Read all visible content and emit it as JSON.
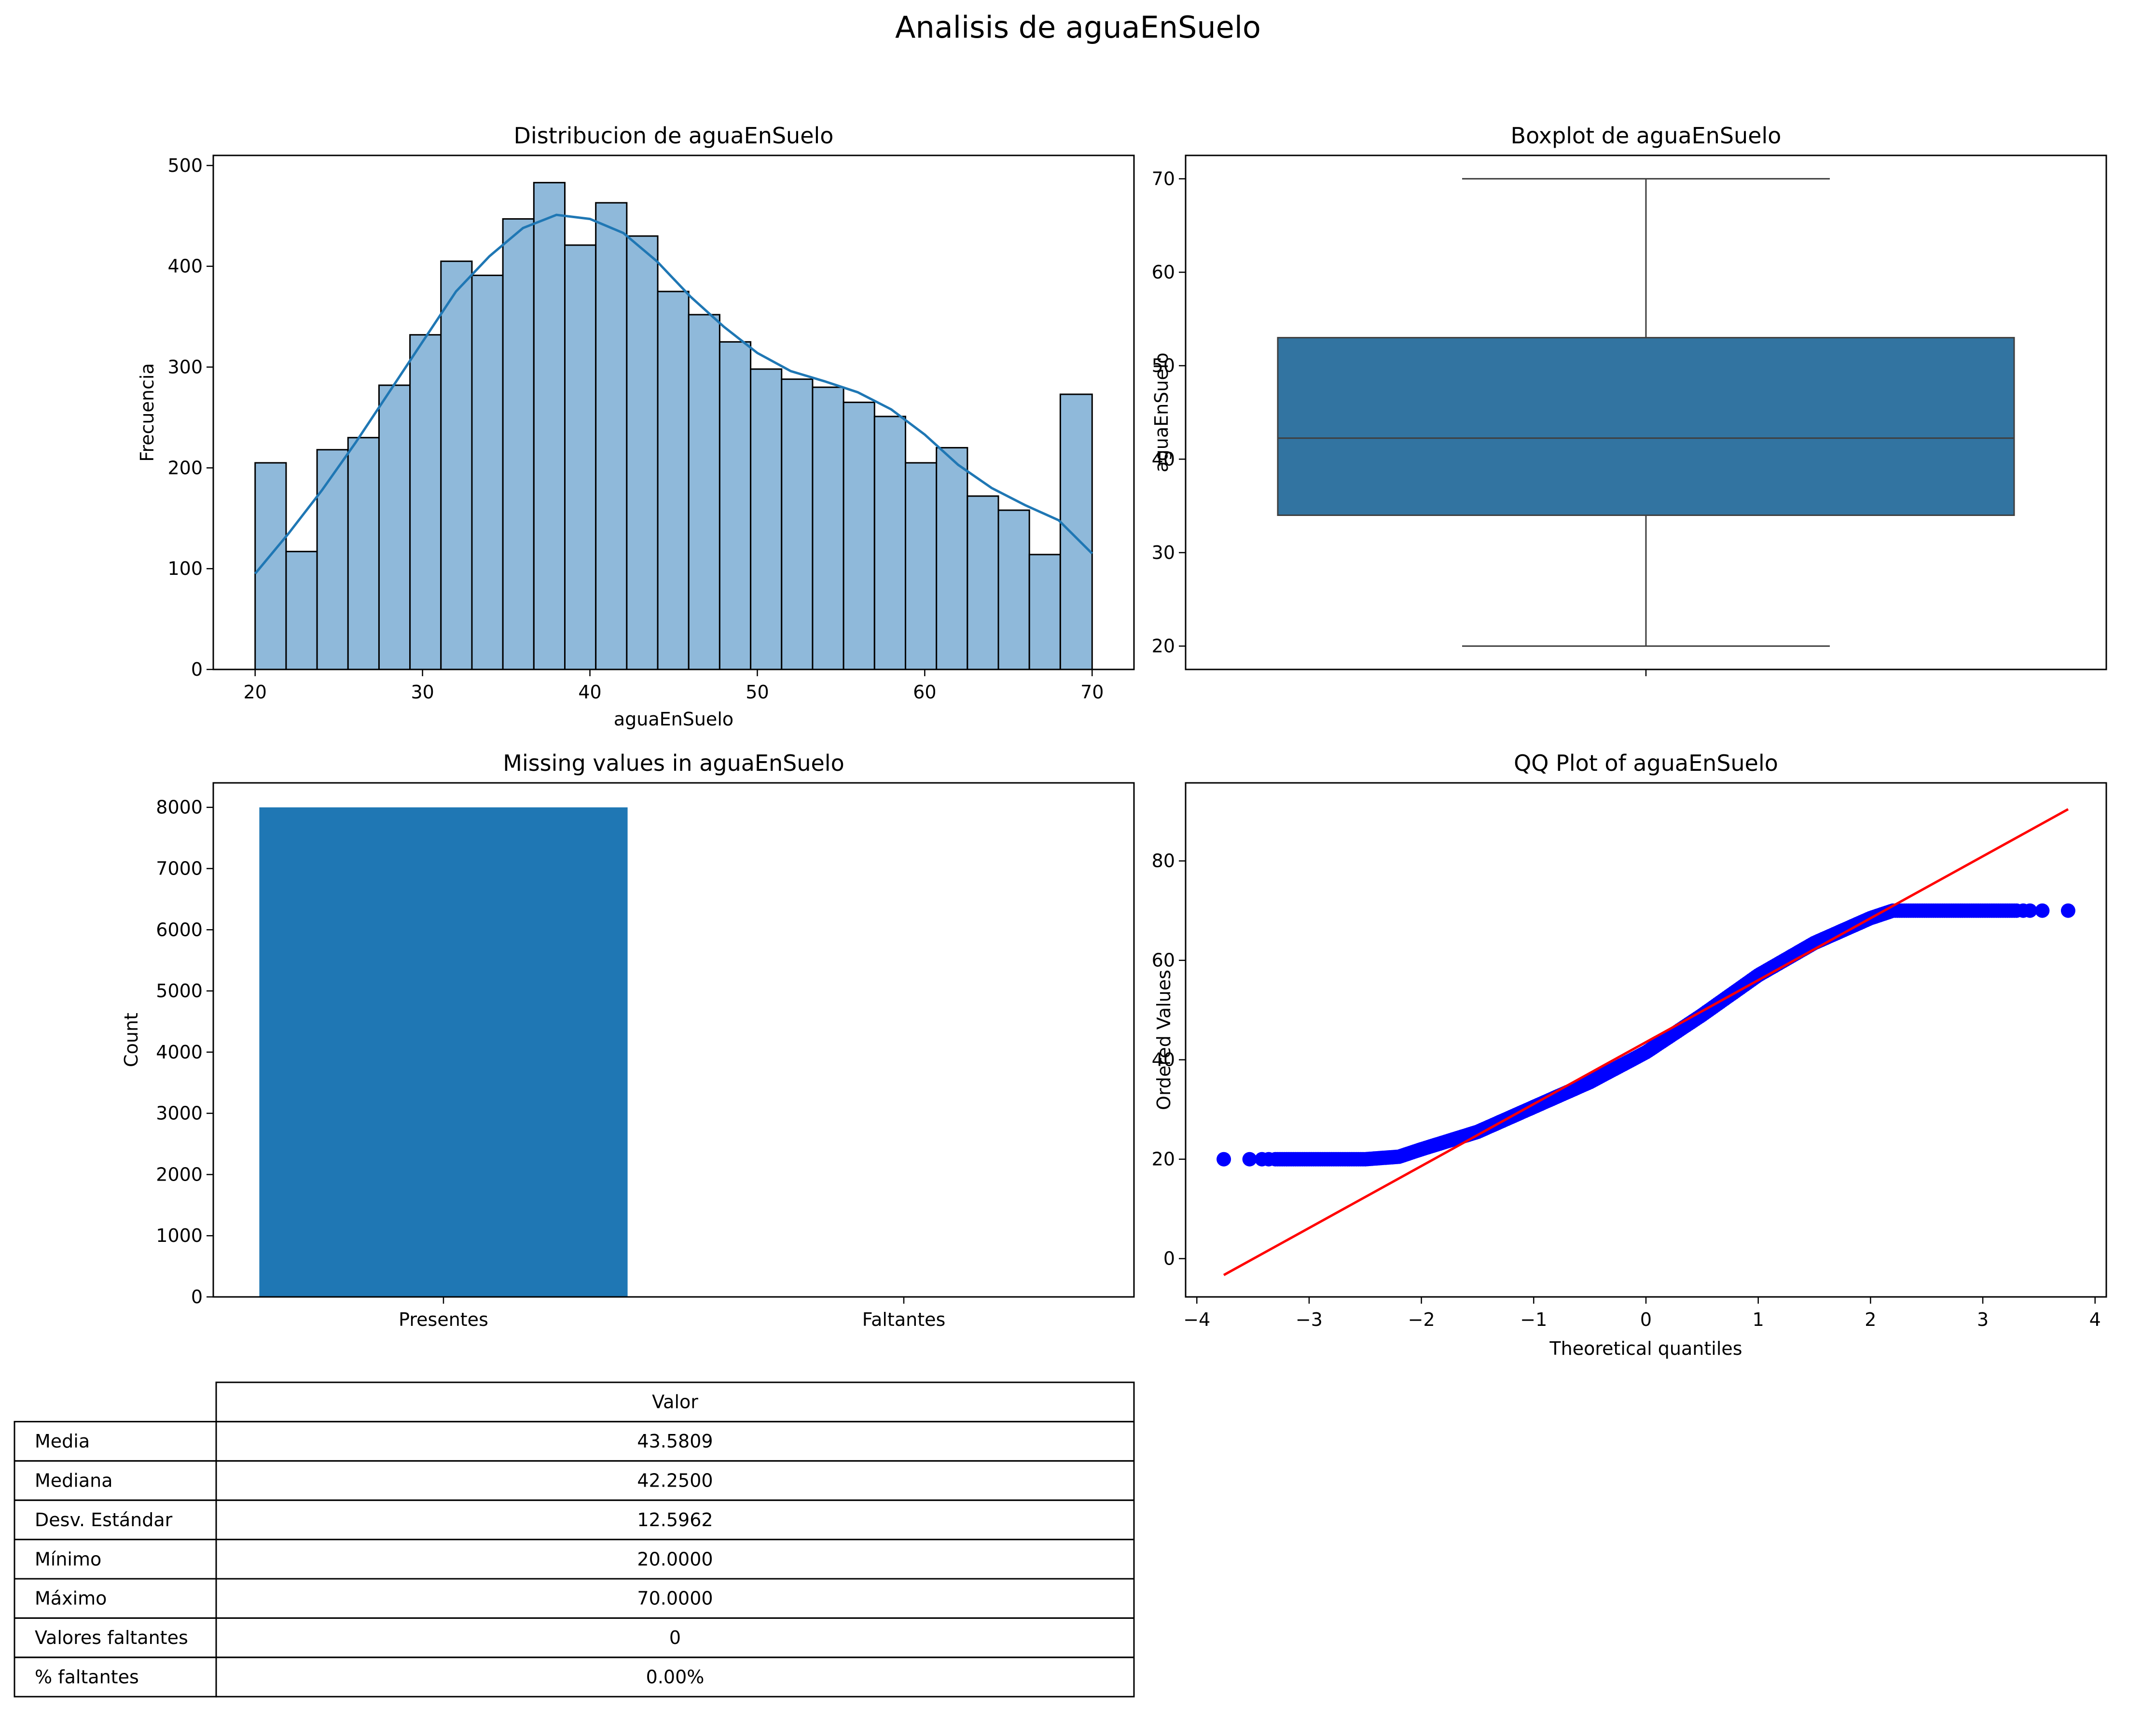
{
  "figure": {
    "title": "Analisis de aguaEnSuelo"
  },
  "colors": {
    "hist_fill": "#8fb9da",
    "hist_edge": "#000000",
    "kde_line": "#1f77b4",
    "box_fill": "#3274a1",
    "bar_fill": "#1f77b4",
    "qq_points": "#0000ff",
    "qq_line": "#ff0000"
  },
  "chart_data": [
    {
      "type": "bar",
      "subtype": "histogram",
      "title": "Distribucion de aguaEnSuelo",
      "xlabel": "aguaEnSuelo",
      "ylabel": "Frecuencia",
      "xlim": [
        17.5,
        72.5
      ],
      "ylim": [
        0,
        510
      ],
      "xticks": [
        20,
        30,
        40,
        50,
        60,
        70
      ],
      "yticks": [
        0,
        100,
        200,
        300,
        400,
        500
      ],
      "bin_edges": [
        20,
        21.85,
        23.7,
        25.55,
        27.4,
        29.25,
        31.1,
        32.95,
        34.8,
        36.65,
        38.5,
        40.35,
        42.2,
        44.05,
        45.9,
        47.75,
        49.6,
        51.45,
        53.3,
        55.15,
        57.0,
        58.85,
        60.7,
        62.55,
        64.4,
        66.25,
        68.1,
        70
      ],
      "values": [
        205,
        117,
        218,
        230,
        282,
        332,
        405,
        391,
        447,
        483,
        421,
        463,
        430,
        375,
        352,
        325,
        298,
        288,
        280,
        265,
        251,
        205,
        220,
        172,
        158,
        114,
        273
      ],
      "kde": {
        "x": [
          20,
          22,
          24,
          26,
          28,
          30,
          32,
          34,
          36,
          38,
          40,
          42,
          44,
          46,
          48,
          50,
          52,
          54,
          56,
          58,
          60,
          62,
          64,
          66,
          68,
          70
        ],
        "y": [
          95,
          135,
          178,
          225,
          275,
          325,
          375,
          410,
          438,
          451,
          447,
          433,
          405,
          370,
          340,
          314,
          296,
          286,
          275,
          258,
          233,
          203,
          180,
          163,
          148,
          115
        ]
      }
    },
    {
      "type": "box",
      "title": "Boxplot de aguaEnSuelo",
      "ylabel": "aguaEnSuelo",
      "ylim": [
        17.5,
        72.5
      ],
      "yticks": [
        20,
        30,
        40,
        50,
        60,
        70
      ],
      "whisker_low": 20.0,
      "q1": 34.0,
      "median": 42.25,
      "q3": 53.0,
      "whisker_high": 70.0
    },
    {
      "type": "bar",
      "title": "Missing values in aguaEnSuelo",
      "ylabel": "Count",
      "categories": [
        "Presentes",
        "Faltantes"
      ],
      "values": [
        8000,
        0
      ],
      "ylim": [
        0,
        8400
      ],
      "yticks": [
        0,
        1000,
        2000,
        3000,
        4000,
        5000,
        6000,
        7000,
        8000
      ]
    },
    {
      "type": "scatter",
      "title": "QQ Plot of aguaEnSuelo",
      "xlabel": "Theoretical quantiles",
      "ylabel": "Ordered Values",
      "xlim": [
        -4.1,
        4.1
      ],
      "ylim": [
        -7.7,
        95.7
      ],
      "xticks": [
        -4,
        -3,
        -2,
        -1,
        0,
        1,
        2,
        3,
        4
      ],
      "yticks": [
        0,
        20,
        40,
        60,
        80
      ],
      "fit_line": {
        "x": [
          -3.76,
          3.76
        ],
        "y": [
          -3.3,
          90.4
        ]
      },
      "points_profile": {
        "x": [
          -3.76,
          -3.5,
          -3.3,
          -3.0,
          -2.5,
          -2.2,
          -2.0,
          -1.5,
          -1.0,
          -0.5,
          0,
          0.5,
          1.0,
          1.5,
          2.0,
          2.2,
          2.5,
          3.0,
          3.3,
          3.5,
          3.76
        ],
        "y": [
          20,
          20,
          20,
          20,
          20,
          20.5,
          22,
          25.5,
          30.5,
          35.5,
          41.5,
          49,
          57,
          63.5,
          68.5,
          70,
          70,
          70,
          70,
          70,
          70
        ]
      }
    }
  ],
  "stats_table": {
    "header": "Valor",
    "rows": [
      {
        "label": "Media",
        "value": "43.5809"
      },
      {
        "label": "Mediana",
        "value": "42.2500"
      },
      {
        "label": "Desv. Estándar",
        "value": "12.5962"
      },
      {
        "label": "Mínimo",
        "value": "20.0000"
      },
      {
        "label": "Máximo",
        "value": "70.0000"
      },
      {
        "label": "Valores faltantes",
        "value": "0"
      },
      {
        "label": "% faltantes",
        "value": "0.00%"
      }
    ]
  }
}
